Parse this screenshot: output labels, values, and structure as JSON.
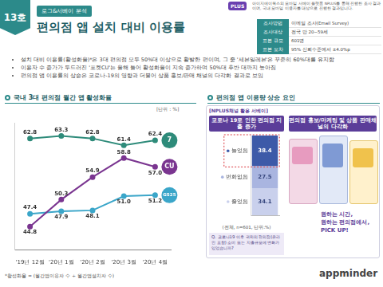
{
  "header": {
    "issue": "13호",
    "tag": "로그&서베이 분석",
    "title": "편의점 앱 설치 대비 이용률"
  },
  "survey": {
    "logo": "PLUS",
    "intro": "아이지에이웍스의 모바일 서베이 플랫폼 NPLUS를 통해 진행한 조사 결과이며, 국내 모바일 이용자를 대상으로 진행한 결과입니다.",
    "rows": [
      [
        "조사방법",
        "이메일 조사(Email Survey)"
      ],
      [
        "조사대상",
        "전국 만 20~59세"
      ],
      [
        "표본 규모",
        "601명"
      ],
      [
        "표본 오차",
        "95% 신뢰수준에서 ±4.0%p"
      ]
    ]
  },
  "bullets": [
    "설치 대비 이용률(활성화율)*은 3대 편의점 모두 50%대 이상으로 활발한 편이며, 그 중 '세븐일레븐'은 꾸준히 60%대를 유지함",
    "이용자 수 증가가 두드러진 '포켓CU'는 올해 들어 활성화율이 지속 증가하며 50%대 후반 대까지 높아짐",
    "편의점 앱 이용률의 상승은 코로나-19의 영향과 더불어 상품 홍보/판매 채널의 다각화 결과로 보임"
  ],
  "chart_data": [
    {
      "type": "line",
      "title": "국내 3대 편의점 월간 앱 활성화율",
      "subtitle": "[단위 : %]",
      "categories": [
        "'19년 12월",
        "'20년 1월",
        "'20년 2월",
        "'20년 3월",
        "'20년 4월"
      ],
      "series": [
        {
          "name": "7",
          "color": "#2e8b7a",
          "values": [
            62.8,
            63.3,
            62.8,
            61.4,
            62.4
          ],
          "value_labels": [
            "62.8",
            "63.3",
            "62.8",
            "61.4",
            "62.4"
          ]
        },
        {
          "name": "CU",
          "color": "#7a3590",
          "values": [
            44.8,
            50.3,
            54.9,
            58.8,
            57.0
          ],
          "value_labels": [
            "44.8",
            "50.3",
            "54.9",
            "58.8",
            "57.0"
          ]
        },
        {
          "name": "GS25",
          "color": "#3ba6c9",
          "values": [
            47.4,
            47.9,
            48.1,
            51.0,
            51.2
          ],
          "value_labels": [
            "47.4",
            "47.9",
            "48.1",
            "51.0",
            "51.2"
          ]
        }
      ],
      "ylim": [
        40,
        66
      ],
      "grid": false,
      "tick_labels": "x",
      "data_labels": true,
      "marker": "circle"
    },
    {
      "type": "bar",
      "title": "코로나 19로 인한 편의점 지출 증가",
      "subtitle": "(전체, n=601, 단위:%)",
      "categories": [
        null
      ],
      "series": [
        {
          "name": "줄었음",
          "color": "#c9d0ec",
          "values": [
            34.1
          ]
        },
        {
          "name": "변화없음",
          "color": "#a9b5e0",
          "values": [
            27.5
          ]
        },
        {
          "name": "늘었음",
          "color": "#3d5aa8",
          "values": [
            38.4
          ]
        }
      ],
      "ylim": [
        0,
        100
      ],
      "stacked": true,
      "grid": false,
      "tick_labels": false,
      "data_labels": true
    }
  ],
  "right_panel": {
    "title": "편의점 앱 이용량 상승 요인",
    "source": "[NPLUS채널 활용 서베이]",
    "factor_2": "편의점 홍보/마케팅 및 상품 판매채널의 다각화",
    "question": "Q. 코로나19 이후 귀하의 편의점(온라인 포함) 소비 또는 지출규모에 변화가 있었습니까?",
    "caption": [
      "원하는 시간,",
      "원하는 편의점에서,",
      "PICK UP!"
    ]
  },
  "footnote": "*활성화율 = (월간앱이용자 수 ÷ 월간앱설치자 수)",
  "logo": "appminder"
}
